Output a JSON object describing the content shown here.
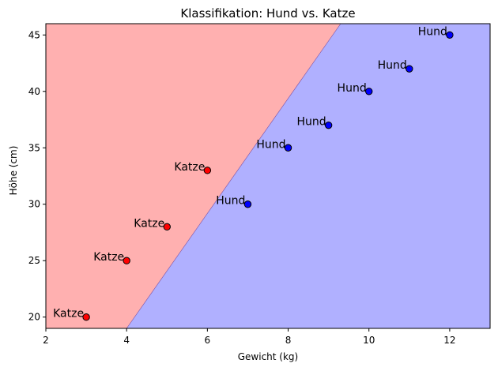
{
  "chart_data": {
    "type": "scatter",
    "title": "Klassifikation: Hund vs. Katze",
    "xlabel": "Gewicht (kg)",
    "ylabel": "Höhe (cm)",
    "xlim": [
      2,
      13
    ],
    "ylim": [
      19,
      46
    ],
    "xticks": [
      2,
      4,
      6,
      8,
      10,
      12
    ],
    "yticks": [
      20,
      25,
      30,
      35,
      40,
      45
    ],
    "grid": false,
    "background": "#ffffff",
    "regions": [
      {
        "class": "Katze",
        "color": "#ffb0b0"
      },
      {
        "class": "Hund",
        "color": "#b0b0ff"
      }
    ],
    "decision_boundary": [
      [
        4,
        19
      ],
      [
        9.3,
        46
      ]
    ],
    "points": [
      {
        "x": 3,
        "y": 20,
        "label": "Katze",
        "color": "#ff0000"
      },
      {
        "x": 4,
        "y": 25,
        "label": "Katze",
        "color": "#ff0000"
      },
      {
        "x": 5,
        "y": 28,
        "label": "Katze",
        "color": "#ff0000"
      },
      {
        "x": 6,
        "y": 33,
        "label": "Katze",
        "color": "#ff0000"
      },
      {
        "x": 7,
        "y": 30,
        "label": "Hund",
        "color": "#0000ff"
      },
      {
        "x": 8,
        "y": 35,
        "label": "Hund",
        "color": "#0000ff"
      },
      {
        "x": 9,
        "y": 37,
        "label": "Hund",
        "color": "#0000ff"
      },
      {
        "x": 10,
        "y": 40,
        "label": "Hund",
        "color": "#0000ff"
      },
      {
        "x": 11,
        "y": 42,
        "label": "Hund",
        "color": "#0000ff"
      },
      {
        "x": 12,
        "y": 45,
        "label": "Hund",
        "color": "#0000ff"
      }
    ]
  }
}
